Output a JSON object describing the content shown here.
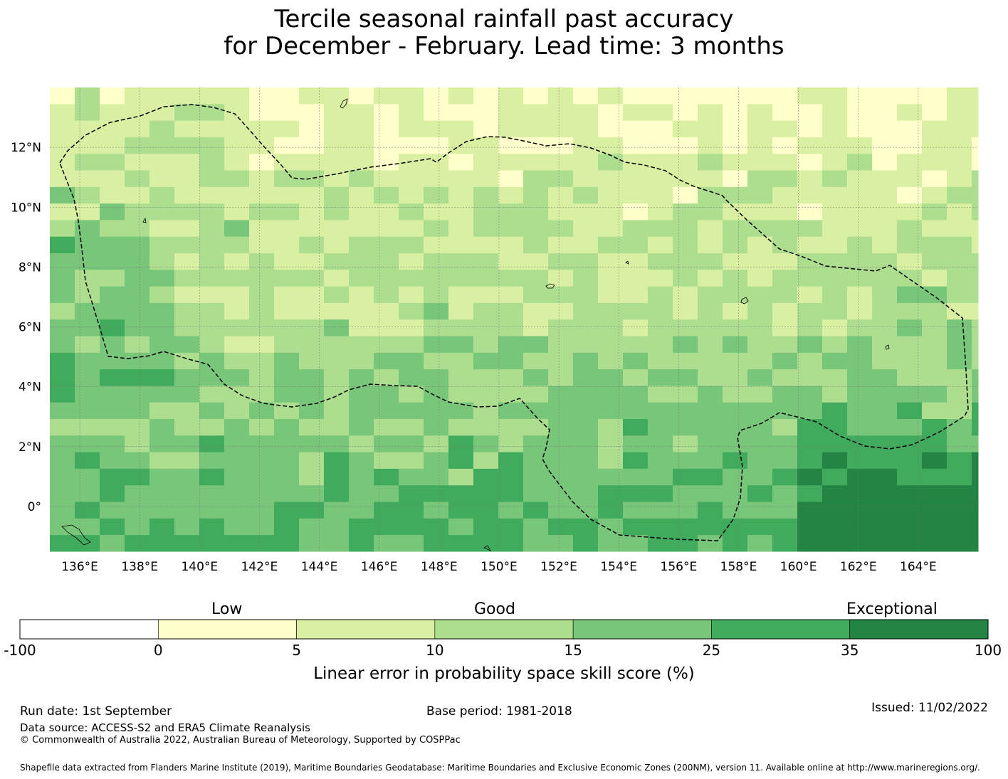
{
  "title": {
    "line1": "Tercile seasonal rainfall past accuracy",
    "line2": "for December - February. Lead time: 3 months"
  },
  "map": {
    "lon_labels": [
      "136°E",
      "138°E",
      "140°E",
      "142°E",
      "144°E",
      "146°E",
      "148°E",
      "150°E",
      "152°E",
      "154°E",
      "156°E",
      "158°E",
      "160°E",
      "162°E",
      "164°E"
    ],
    "lat_labels": [
      "12°N",
      "10°N",
      "8°N",
      "6°N",
      "4°N",
      "2°N",
      "0°"
    ],
    "lon_range": [
      135,
      166
    ],
    "lat_range": [
      -1.5,
      14
    ],
    "grid_lines": true,
    "boundary_style": "dashed",
    "dominant_pattern": "skill increases from north (low) to south (high)"
  },
  "colorbar": {
    "categories": [
      "Low",
      "Good",
      "Exceptional"
    ],
    "tick_labels": [
      "-100",
      "0",
      "5",
      "10",
      "15",
      "25",
      "35",
      "100"
    ],
    "colors": [
      "#ffffff",
      "#ffffcc",
      "#d9f0a3",
      "#addd8e",
      "#78c679",
      "#41ab5d",
      "#238443"
    ],
    "label": "Linear error in probability space skill score (%)"
  },
  "footer": {
    "run_date": "Run date: 1st September",
    "base_period": "Base period: 1981-2018",
    "issued": "Issued: 11/02/2022",
    "data_source": "Data source: ACCESS-S2 and ERA5 Climate Reanalysis",
    "copyright": "© Commonwealth of Australia 2022, Australian Bureau of Meteorology, Supported by COSPPac",
    "shapefile": "Shapefile data extracted from Flanders Marine Institute (2019), Maritime Boundaries Geodatabase: Maritime Boundaries and Exclusive Economic Zones (200NM), version 11. Available online at http://www.marineregions.org/."
  }
}
